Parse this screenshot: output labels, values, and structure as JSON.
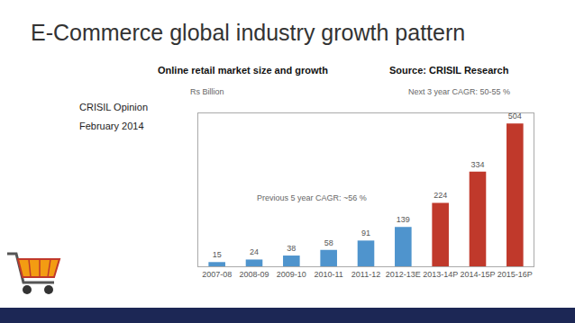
{
  "slide": {
    "title": "E-Commerce global industry growth pattern",
    "notes": [
      "CRISIL Opinion",
      "February 2014"
    ],
    "source": "Source: CRISIL Research"
  },
  "chart_data": {
    "type": "bar",
    "title": "Online retail market size and growth",
    "ylabel": "Rs Billion",
    "categories": [
      "2007-08",
      "2008-09",
      "2009-10",
      "2010-11",
      "2011-12",
      "2012-13E",
      "2013-14P",
      "2014-15P",
      "2015-16P"
    ],
    "values": [
      15,
      24,
      38,
      58,
      91,
      139,
      224,
      334,
      504
    ],
    "colors": [
      "#4f94cd",
      "#4f94cd",
      "#4f94cd",
      "#4f94cd",
      "#4f94cd",
      "#4f94cd",
      "#c0392b",
      "#c0392b",
      "#c0392b"
    ],
    "ylim": [
      0,
      540
    ],
    "grid": false,
    "data_labels": true,
    "tick_labels": "x",
    "annotations": [
      "Previous 5 year CAGR: ~56 %",
      "Next 3 year CAGR: 50-55 %"
    ]
  }
}
